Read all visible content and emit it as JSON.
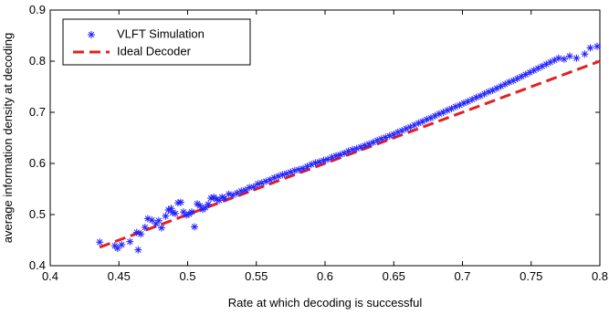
{
  "chart_data": {
    "type": "scatter",
    "xlabel": "Rate at which decoding is successful",
    "ylabel": "average information density at decoding",
    "xlim": [
      0.4,
      0.8
    ],
    "ylim": [
      0.4,
      0.9
    ],
    "xticks": [
      "0.4",
      "0.45",
      "0.5",
      "0.55",
      "0.6",
      "0.65",
      "0.7",
      "0.75",
      "0.8"
    ],
    "yticks": [
      "0.4",
      "0.5",
      "0.6",
      "0.7",
      "0.8",
      "0.9"
    ],
    "grid": false,
    "legend_position": "top-left",
    "series": [
      {
        "name": "VLFT Simulation",
        "style": "asterisk",
        "color": "#2020ff",
        "points": [
          [
            0.436,
            0.446
          ],
          [
            0.447,
            0.439
          ],
          [
            0.449,
            0.434
          ],
          [
            0.452,
            0.441
          ],
          [
            0.458,
            0.447
          ],
          [
            0.463,
            0.465
          ],
          [
            0.464,
            0.431
          ],
          [
            0.466,
            0.462
          ],
          [
            0.469,
            0.475
          ],
          [
            0.471,
            0.492
          ],
          [
            0.474,
            0.489
          ],
          [
            0.477,
            0.482
          ],
          [
            0.479,
            0.488
          ],
          [
            0.481,
            0.474
          ],
          [
            0.484,
            0.497
          ],
          [
            0.486,
            0.509
          ],
          [
            0.488,
            0.512
          ],
          [
            0.489,
            0.504
          ],
          [
            0.491,
            0.502
          ],
          [
            0.493,
            0.523
          ],
          [
            0.495,
            0.524
          ],
          [
            0.497,
            0.505
          ],
          [
            0.499,
            0.499
          ],
          [
            0.501,
            0.501
          ],
          [
            0.503,
            0.505
          ],
          [
            0.505,
            0.476
          ],
          [
            0.507,
            0.521
          ],
          [
            0.509,
            0.517
          ],
          [
            0.511,
            0.51
          ],
          [
            0.513,
            0.514
          ],
          [
            0.515,
            0.52
          ],
          [
            0.517,
            0.532
          ],
          [
            0.519,
            0.534
          ],
          [
            0.521,
            0.53
          ],
          [
            0.523,
            0.528
          ],
          [
            0.525,
            0.534
          ],
          [
            0.527,
            0.532
          ],
          [
            0.53,
            0.54
          ],
          [
            0.533,
            0.538
          ],
          [
            0.536,
            0.542
          ],
          [
            0.539,
            0.546
          ],
          [
            0.542,
            0.548
          ],
          [
            0.545,
            0.553
          ],
          [
            0.548,
            0.554
          ],
          [
            0.551,
            0.56
          ],
          [
            0.554,
            0.562
          ],
          [
            0.557,
            0.565
          ],
          [
            0.56,
            0.568
          ],
          [
            0.563,
            0.572
          ],
          [
            0.566,
            0.575
          ],
          [
            0.569,
            0.578
          ],
          [
            0.572,
            0.58
          ],
          [
            0.575,
            0.583
          ],
          [
            0.578,
            0.586
          ],
          [
            0.581,
            0.588
          ],
          [
            0.584,
            0.59
          ],
          [
            0.587,
            0.594
          ],
          [
            0.59,
            0.598
          ],
          [
            0.593,
            0.601
          ],
          [
            0.596,
            0.603
          ],
          [
            0.599,
            0.606
          ],
          [
            0.602,
            0.608
          ],
          [
            0.605,
            0.612
          ],
          [
            0.608,
            0.615
          ],
          [
            0.611,
            0.617
          ],
          [
            0.614,
            0.62
          ],
          [
            0.617,
            0.624
          ],
          [
            0.62,
            0.627
          ],
          [
            0.623,
            0.629
          ],
          [
            0.626,
            0.632
          ],
          [
            0.629,
            0.635
          ],
          [
            0.632,
            0.638
          ],
          [
            0.635,
            0.641
          ],
          [
            0.638,
            0.645
          ],
          [
            0.641,
            0.648
          ],
          [
            0.644,
            0.651
          ],
          [
            0.647,
            0.654
          ],
          [
            0.65,
            0.657
          ],
          [
            0.653,
            0.661
          ],
          [
            0.656,
            0.664
          ],
          [
            0.659,
            0.668
          ],
          [
            0.662,
            0.671
          ],
          [
            0.665,
            0.675
          ],
          [
            0.668,
            0.679
          ],
          [
            0.671,
            0.682
          ],
          [
            0.674,
            0.686
          ],
          [
            0.677,
            0.689
          ],
          [
            0.68,
            0.693
          ],
          [
            0.683,
            0.697
          ],
          [
            0.686,
            0.7
          ],
          [
            0.689,
            0.704
          ],
          [
            0.692,
            0.707
          ],
          [
            0.695,
            0.711
          ],
          [
            0.698,
            0.714
          ],
          [
            0.701,
            0.718
          ],
          [
            0.704,
            0.721
          ],
          [
            0.707,
            0.725
          ],
          [
            0.71,
            0.729
          ],
          [
            0.713,
            0.732
          ],
          [
            0.716,
            0.736
          ],
          [
            0.719,
            0.74
          ],
          [
            0.722,
            0.743
          ],
          [
            0.725,
            0.747
          ],
          [
            0.728,
            0.751
          ],
          [
            0.731,
            0.755
          ],
          [
            0.734,
            0.759
          ],
          [
            0.737,
            0.762
          ],
          [
            0.74,
            0.766
          ],
          [
            0.743,
            0.77
          ],
          [
            0.746,
            0.774
          ],
          [
            0.749,
            0.778
          ],
          [
            0.752,
            0.782
          ],
          [
            0.755,
            0.786
          ],
          [
            0.758,
            0.79
          ],
          [
            0.761,
            0.794
          ],
          [
            0.764,
            0.798
          ],
          [
            0.767,
            0.802
          ],
          [
            0.77,
            0.806
          ],
          [
            0.774,
            0.804
          ],
          [
            0.778,
            0.81
          ],
          [
            0.783,
            0.806
          ],
          [
            0.789,
            0.814
          ],
          [
            0.793,
            0.826
          ],
          [
            0.798,
            0.829
          ]
        ]
      },
      {
        "name": "Ideal Decoder",
        "style": "dashed-line",
        "color": "#e32020",
        "points": [
          [
            0.436,
            0.436
          ],
          [
            0.8,
            0.8
          ]
        ]
      }
    ]
  }
}
